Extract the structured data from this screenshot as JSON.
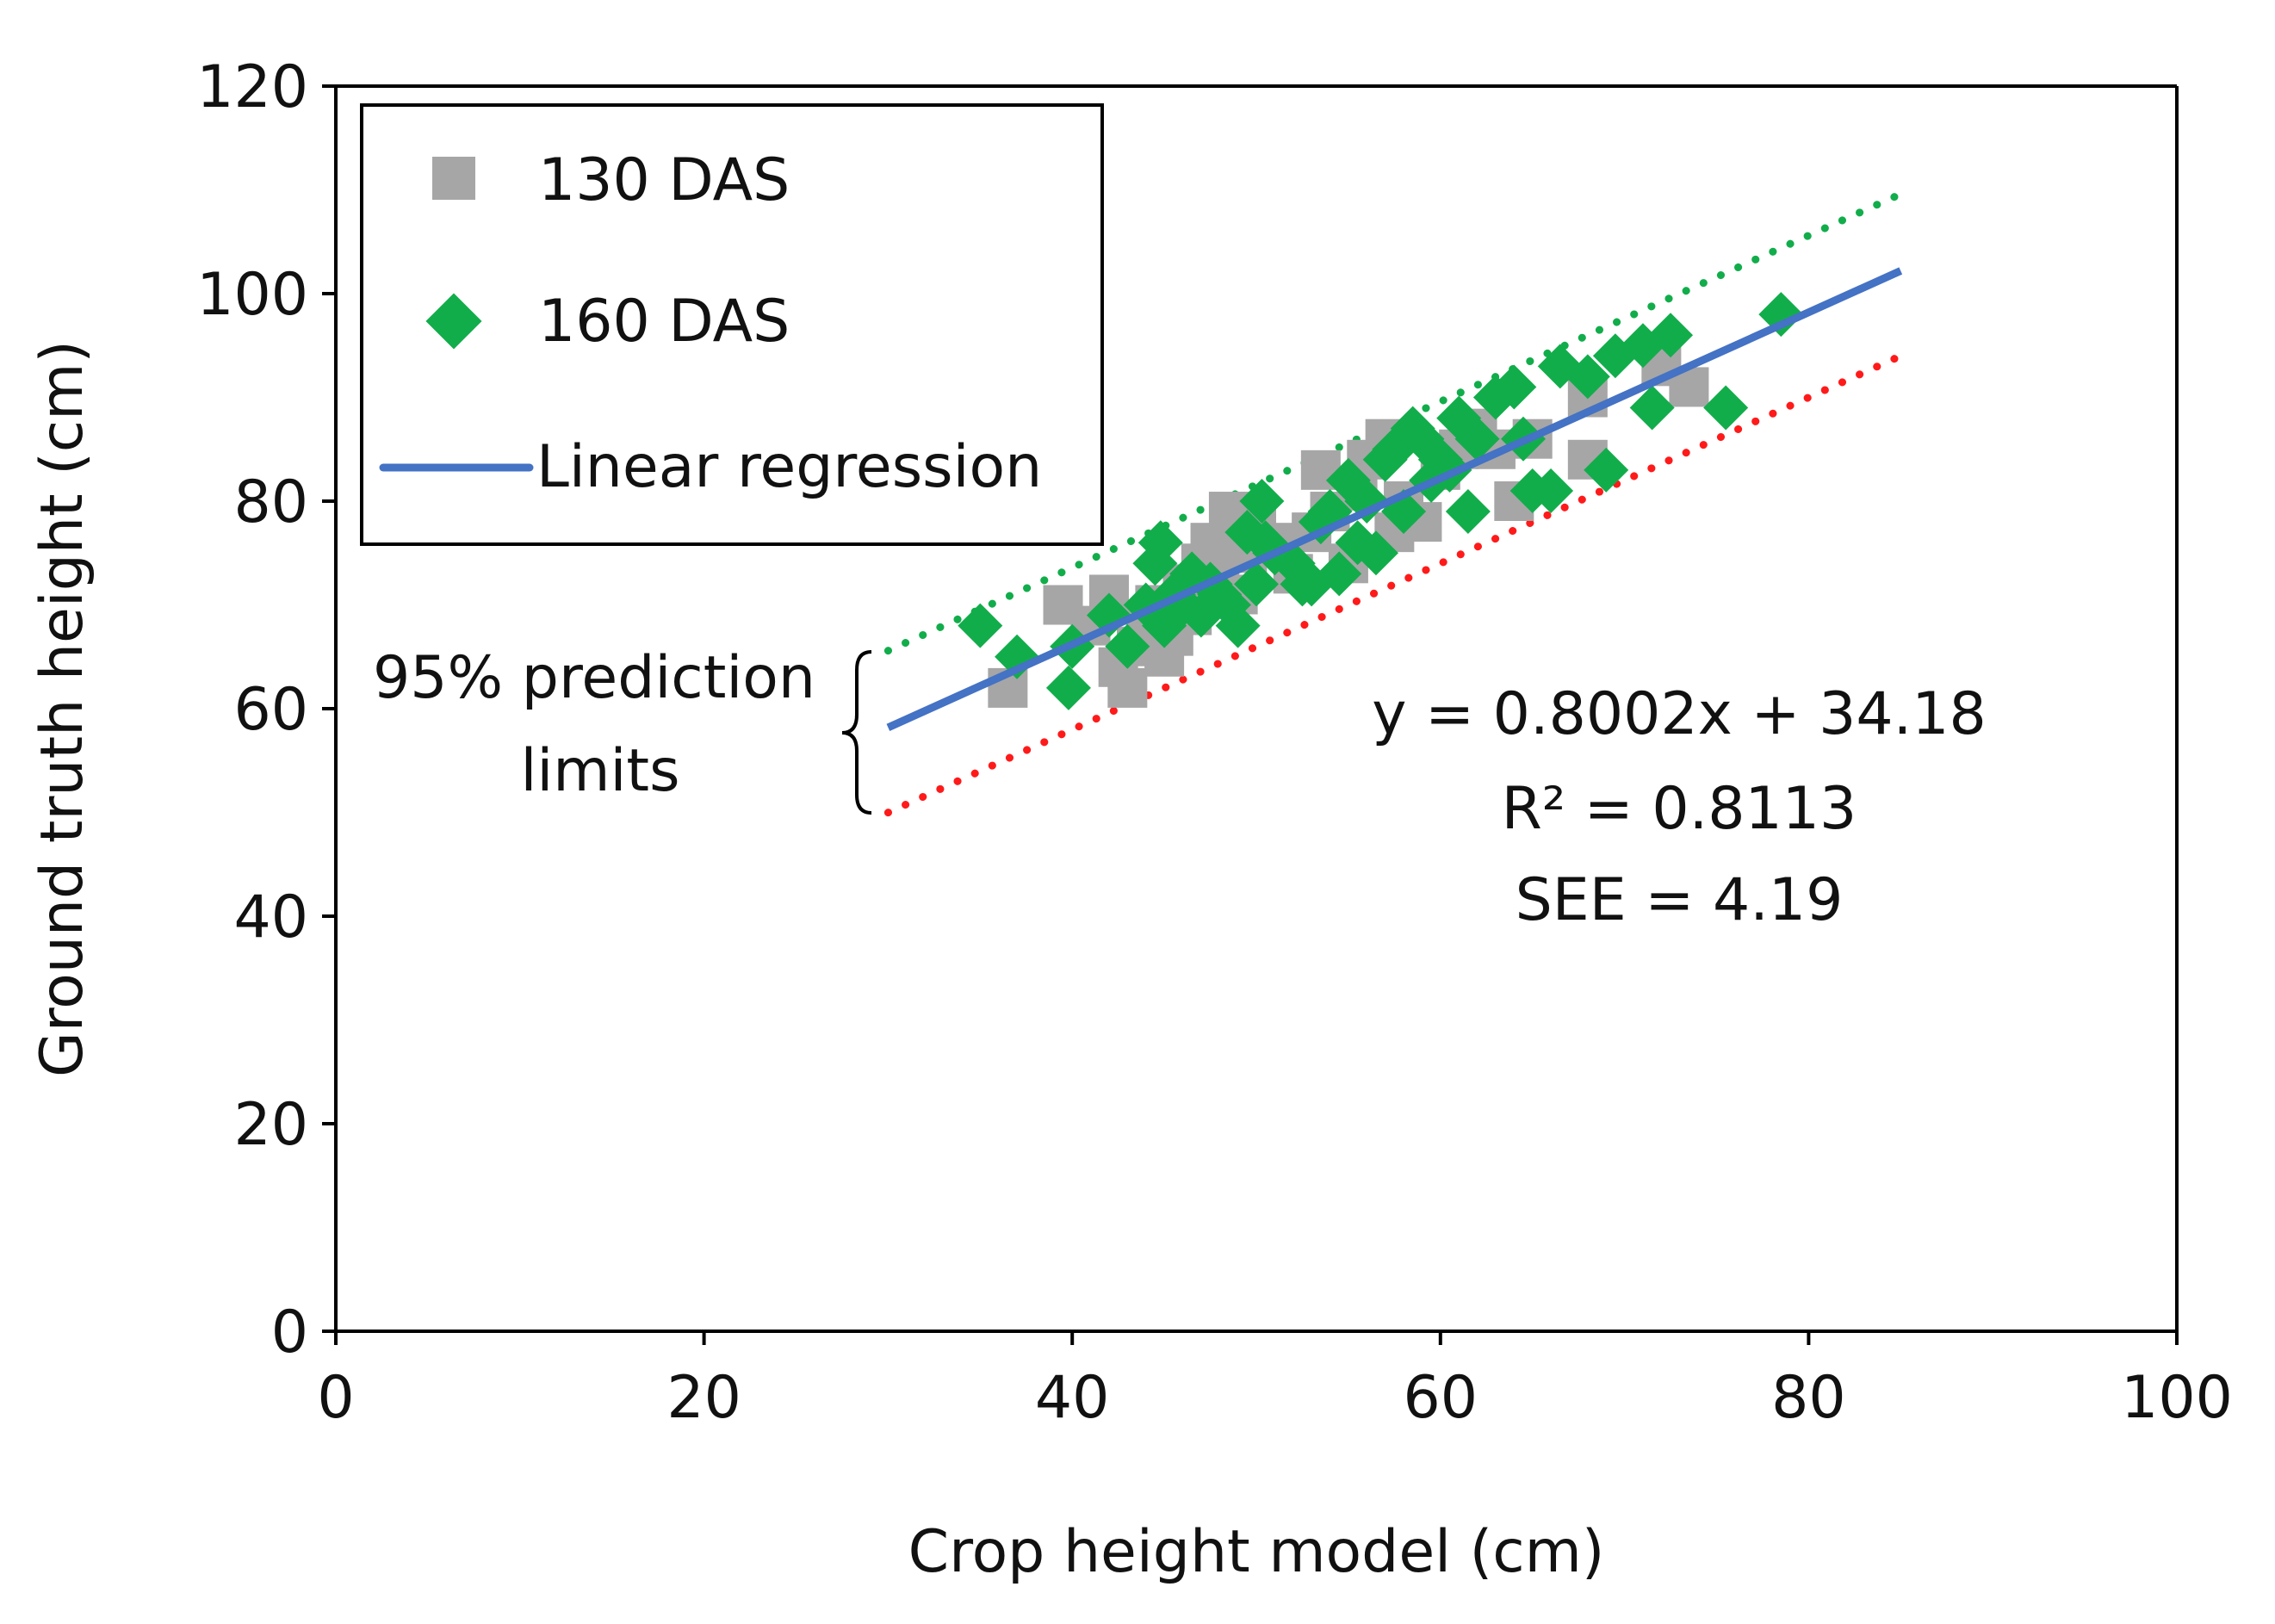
{
  "chart_data": {
    "type": "scatter",
    "xlabel": "Crop height model (cm)",
    "ylabel": "Ground truth height (cm)",
    "xlim": [
      0,
      100
    ],
    "ylim": [
      0,
      120
    ],
    "x_ticks": [
      "0",
      "20",
      "40",
      "60",
      "80",
      "100"
    ],
    "y_ticks": [
      "0",
      "20",
      "40",
      "60",
      "80",
      "100",
      "120"
    ],
    "legend": {
      "position": "top-left",
      "entries": [
        "130 DAS",
        "160 DAS",
        "Linear regression"
      ]
    },
    "colors": {
      "das130": "#a6a6a6",
      "das160": "#12ad4b",
      "regression": "#4472c4",
      "upper_limit": "#12ad4b",
      "lower_limit": "#ff1a1a",
      "axis": "#000000"
    },
    "series": [
      {
        "name": "130 DAS",
        "marker": "square",
        "points": [
          [
            36.5,
            62
          ],
          [
            39.5,
            70
          ],
          [
            41,
            68
          ],
          [
            42,
            71
          ],
          [
            42.5,
            64
          ],
          [
            43,
            62
          ],
          [
            43.5,
            66
          ],
          [
            44,
            68
          ],
          [
            44.5,
            70
          ],
          [
            45,
            65
          ],
          [
            45.5,
            67
          ],
          [
            46,
            72
          ],
          [
            46.5,
            69
          ],
          [
            47,
            74
          ],
          [
            47.5,
            76
          ],
          [
            48,
            73
          ],
          [
            48.5,
            79
          ],
          [
            49,
            71
          ],
          [
            49.5,
            75
          ],
          [
            50,
            78
          ],
          [
            51,
            76
          ],
          [
            52,
            73
          ],
          [
            53,
            77
          ],
          [
            53.5,
            83
          ],
          [
            54,
            79
          ],
          [
            55,
            74
          ],
          [
            55.5,
            81
          ],
          [
            56,
            84
          ],
          [
            57,
            86
          ],
          [
            57.5,
            77
          ],
          [
            58,
            80
          ],
          [
            59,
            78
          ],
          [
            60,
            83
          ],
          [
            61,
            85
          ],
          [
            62,
            87
          ],
          [
            63,
            85
          ],
          [
            64,
            80
          ],
          [
            65,
            86
          ],
          [
            68,
            84
          ],
          [
            68,
            90
          ],
          [
            72,
            93
          ],
          [
            73.5,
            91
          ]
        ]
      },
      {
        "name": "160 DAS",
        "marker": "diamond",
        "points": [
          [
            35,
            68
          ],
          [
            37,
            65
          ],
          [
            39.8,
            62
          ],
          [
            40,
            66
          ],
          [
            42,
            69
          ],
          [
            43,
            66
          ],
          [
            44,
            70
          ],
          [
            44.5,
            74
          ],
          [
            44.8,
            76
          ],
          [
            45,
            68
          ],
          [
            45.5,
            71
          ],
          [
            46,
            70
          ],
          [
            46.5,
            73
          ],
          [
            47,
            69
          ],
          [
            47.5,
            72
          ],
          [
            48,
            71
          ],
          [
            48.5,
            70
          ],
          [
            49,
            68
          ],
          [
            49.5,
            77
          ],
          [
            50,
            72
          ],
          [
            50.3,
            80
          ],
          [
            50.5,
            76
          ],
          [
            51,
            75
          ],
          [
            52,
            74
          ],
          [
            52.5,
            72
          ],
          [
            53,
            72
          ],
          [
            53.5,
            78
          ],
          [
            54,
            79
          ],
          [
            54.5,
            73
          ],
          [
            55,
            82
          ],
          [
            55.5,
            76
          ],
          [
            56,
            80
          ],
          [
            56.5,
            75
          ],
          [
            57,
            84
          ],
          [
            57.5,
            85
          ],
          [
            58,
            79
          ],
          [
            58.5,
            87
          ],
          [
            59,
            86
          ],
          [
            59.5,
            82
          ],
          [
            60,
            84
          ],
          [
            60.5,
            83
          ],
          [
            61,
            88
          ],
          [
            61.5,
            79
          ],
          [
            62,
            86
          ],
          [
            63,
            90
          ],
          [
            64,
            91
          ],
          [
            64.5,
            86
          ],
          [
            65,
            81
          ],
          [
            66,
            81
          ],
          [
            66.5,
            93
          ],
          [
            68,
            92
          ],
          [
            69,
            83
          ],
          [
            69.5,
            94
          ],
          [
            71,
            95
          ],
          [
            71.5,
            89
          ],
          [
            72.5,
            96
          ],
          [
            75.5,
            89
          ],
          [
            78.5,
            98
          ]
        ]
      }
    ],
    "regression": {
      "label": "Linear regression",
      "slope": 0.8002,
      "intercept": 34.18,
      "x_range": [
        30,
        85
      ]
    },
    "prediction_limits": {
      "label_line1": "95% prediction",
      "label_line2": "limits",
      "upper_offset": 7.4,
      "lower_offset": -8.2,
      "x_range": [
        30,
        85
      ]
    },
    "annotation": {
      "equation": "y = 0.8002x + 34.18",
      "r2": "R² = 0.8113",
      "see": "SEE = 4.19"
    }
  }
}
